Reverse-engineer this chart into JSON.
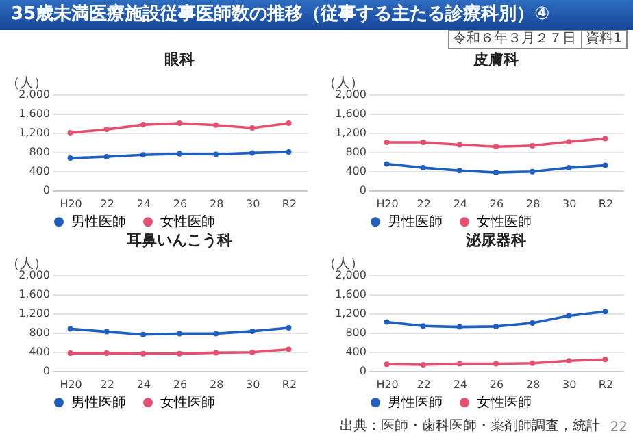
{
  "chart_data": [
    {
      "type": "line",
      "title": "眼科",
      "ylabel": "（人）",
      "categories": [
        "H20",
        "22",
        "24",
        "26",
        "28",
        "30",
        "R2"
      ],
      "series": [
        {
          "name": "男性医師",
          "color": "#1f5fbf",
          "values": [
            670,
            700,
            740,
            760,
            750,
            780,
            800
          ]
        },
        {
          "name": "女性医師",
          "color": "#e4506f",
          "values": [
            1200,
            1270,
            1370,
            1400,
            1360,
            1300,
            1400
          ]
        }
      ],
      "ylim": [
        0,
        2000
      ],
      "yticks": [
        0,
        400,
        800,
        {
          "value": 1200,
          "label": "1,200"
        },
        {
          "value": 1600,
          "label": "1,600"
        },
        {
          "value": 2000,
          "label": "2,000"
        }
      ],
      "grid": "y",
      "legend": "bottom",
      "marker": "circle",
      "annotations": [
        "35歳未満医療施設従事医師数の推移（従事する主たる診療科別）④",
        "令和６年３月２７日",
        "資料1"
      ]
    },
    {
      "type": "line",
      "title": "皮膚科",
      "ylabel": "（人）",
      "categories": [
        "H20",
        "22",
        "24",
        "26",
        "28",
        "30",
        "R2"
      ],
      "series": [
        {
          "name": "男性医師",
          "color": "#1f5fbf",
          "values": [
            550,
            470,
            410,
            370,
            390,
            470,
            520
          ]
        },
        {
          "name": "女性医師",
          "color": "#e4506f",
          "values": [
            1000,
            1000,
            950,
            910,
            930,
            1010,
            1080
          ]
        }
      ],
      "ylim": [
        0,
        2000
      ],
      "yticks": [
        0,
        400,
        800,
        {
          "value": 1200,
          "label": "1,200"
        },
        {
          "value": 1600,
          "label": "1,600"
        },
        {
          "value": 2000,
          "label": "2,000"
        }
      ],
      "grid": "y",
      "legend": "bottom",
      "marker": "circle"
    },
    {
      "type": "line",
      "title": "耳鼻いんこう科",
      "ylabel": "（人）",
      "categories": [
        "H20",
        "22",
        "24",
        "26",
        "28",
        "30",
        "R2"
      ],
      "series": [
        {
          "name": "男性医師",
          "color": "#1f5fbf",
          "values": [
            880,
            820,
            760,
            780,
            780,
            830,
            900
          ]
        },
        {
          "name": "女性医師",
          "color": "#e4506f",
          "values": [
            370,
            370,
            360,
            360,
            380,
            390,
            450
          ]
        }
      ],
      "ylim": [
        0,
        2000
      ],
      "yticks": [
        0,
        400,
        800,
        {
          "value": 1200,
          "label": "1,200"
        },
        {
          "value": 1600,
          "label": "1,600"
        },
        {
          "value": 2000,
          "label": "2,000"
        }
      ],
      "grid": "y",
      "legend": "bottom",
      "marker": "circle"
    },
    {
      "type": "line",
      "title": "泌尿器科",
      "ylabel": "（人）",
      "categories": [
        "H20",
        "22",
        "24",
        "26",
        "28",
        "30",
        "R2"
      ],
      "series": [
        {
          "name": "男性医師",
          "color": "#1f5fbf",
          "values": [
            1020,
            940,
            920,
            930,
            1000,
            1150,
            1240
          ]
        },
        {
          "name": "女性医師",
          "color": "#e4506f",
          "values": [
            140,
            130,
            150,
            150,
            160,
            210,
            240
          ]
        }
      ],
      "ylim": [
        0,
        2000
      ],
      "yticks": [
        0,
        400,
        800,
        {
          "value": 1200,
          "label": "1,200"
        },
        {
          "value": 1600,
          "label": "1,600"
        },
        {
          "value": 2000,
          "label": "2,000"
        }
      ],
      "grid": "y",
      "legend": "bottom",
      "marker": "circle",
      "annotations": [
        "出典：医師・歯科医師・薬剤師調査，統計",
        "22"
      ]
    }
  ]
}
